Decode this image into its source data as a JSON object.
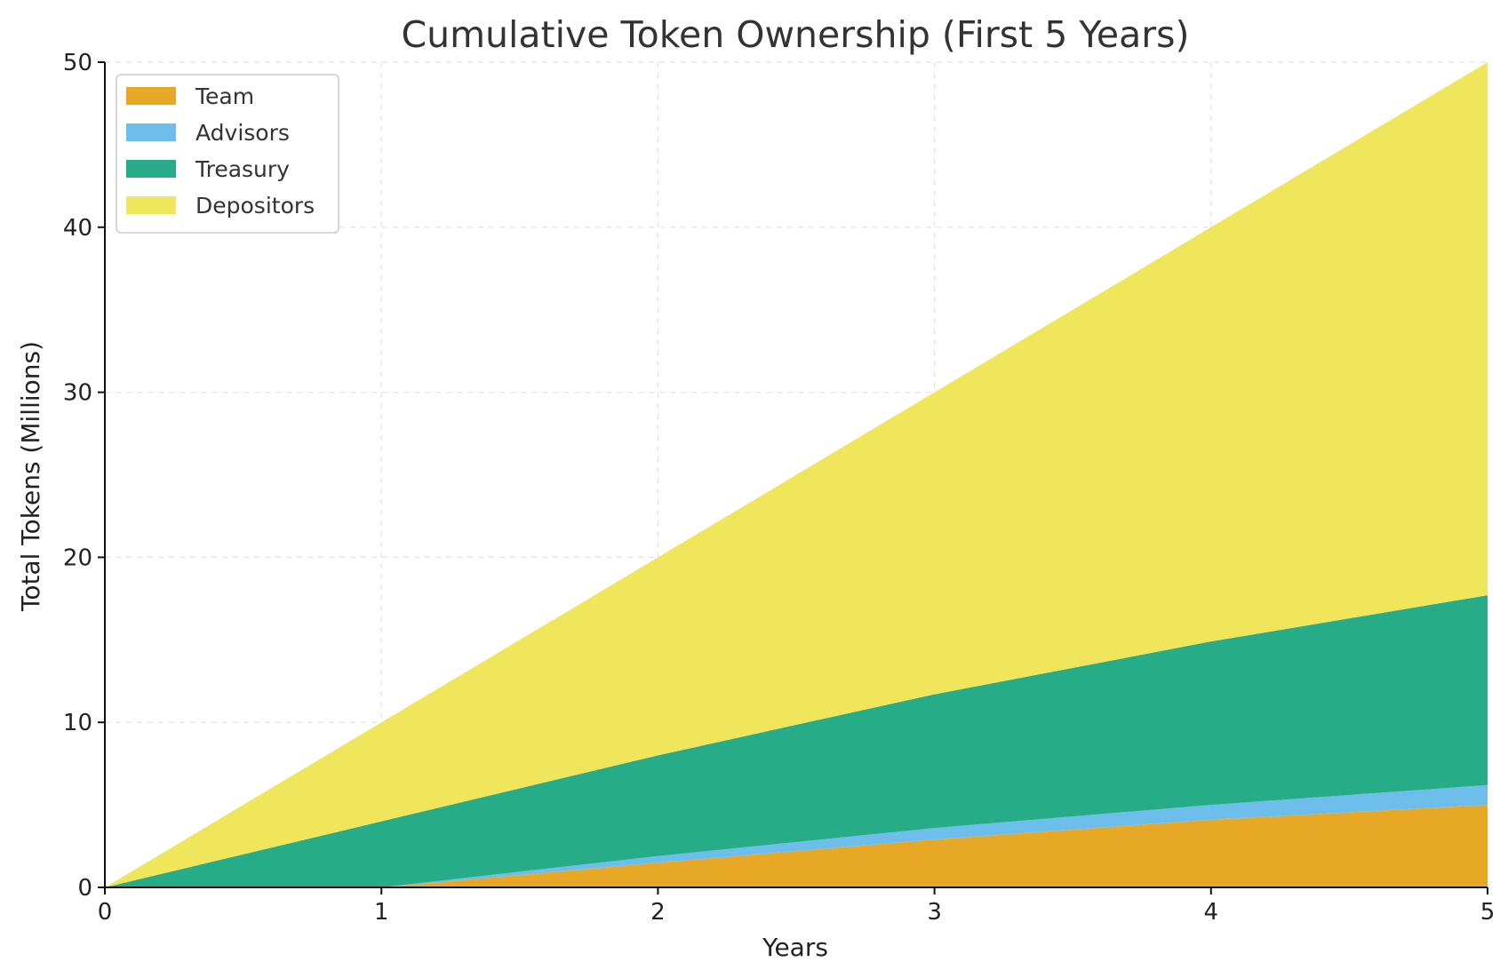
{
  "chart_data": {
    "type": "area",
    "stacked": true,
    "title": "Cumulative Token Ownership (First 5 Years)",
    "xlabel": "Years",
    "ylabel": "Total Tokens (Millions)",
    "x": [
      0,
      1,
      2,
      3,
      4,
      5
    ],
    "xlim": [
      0,
      5
    ],
    "ylim": [
      0,
      50
    ],
    "xticks": [
      "0",
      "1",
      "2",
      "3",
      "4",
      "5"
    ],
    "yticks": [
      "0",
      "10",
      "20",
      "30",
      "40",
      "50"
    ],
    "grid": true,
    "legend_position": "top-left",
    "series": [
      {
        "name": "Team",
        "color": "#E6A825",
        "values": [
          0,
          0,
          1.5,
          2.9,
          4.1,
          5.0
        ]
      },
      {
        "name": "Advisors",
        "color": "#6DBEEB",
        "values": [
          0,
          0,
          0.4,
          0.7,
          0.9,
          1.2
        ]
      },
      {
        "name": "Treasury",
        "color": "#26AC87",
        "values": [
          0,
          4.0,
          6.1,
          8.1,
          9.9,
          11.5
        ]
      },
      {
        "name": "Depositors",
        "color": "#F0E65C",
        "values": [
          0,
          6.0,
          12.0,
          18.3,
          25.1,
          32.3
        ]
      }
    ]
  }
}
